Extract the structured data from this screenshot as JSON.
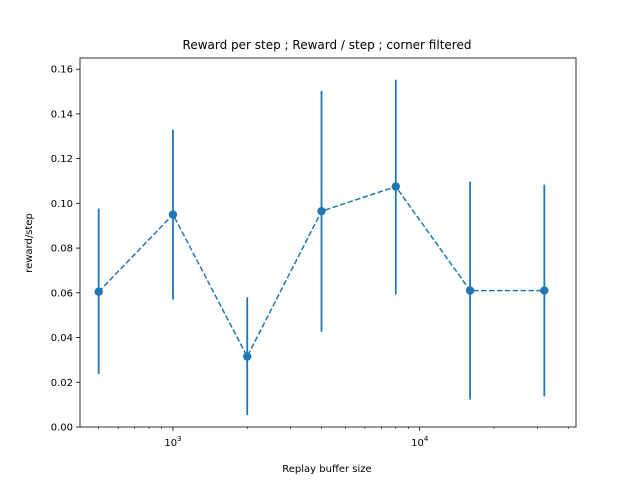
{
  "chart_data": {
    "type": "line",
    "title": "Reward per step ; Reward / step ; corner filtered",
    "xlabel": "Replay buffer size",
    "ylabel": "reward/step",
    "x_scale": "log",
    "xlim": [
      420,
      43000
    ],
    "ylim": [
      0.0,
      0.165
    ],
    "x_ticks": [
      {
        "value": 1000,
        "base": "10",
        "exp": "3"
      },
      {
        "value": 10000,
        "base": "10",
        "exp": "4"
      }
    ],
    "y_ticks": [
      "0.00",
      "0.02",
      "0.04",
      "0.06",
      "0.08",
      "0.10",
      "0.12",
      "0.14",
      "0.16"
    ],
    "grid": false,
    "legend": "none",
    "series": [
      {
        "color": "#1f77b4",
        "line_style": "dashed",
        "marker": "circle",
        "x": [
          500,
          1000,
          2000,
          4000,
          8000,
          16000,
          32000
        ],
        "y": [
          0.0605,
          0.095,
          0.0315,
          0.0965,
          0.1075,
          0.061,
          0.061
        ],
        "err_low": [
          0.0237,
          0.057,
          0.0053,
          0.0426,
          0.0593,
          0.0123,
          0.0137
        ],
        "err_high": [
          0.0977,
          0.133,
          0.058,
          0.1503,
          0.1553,
          0.1097,
          0.1084
        ]
      }
    ]
  }
}
